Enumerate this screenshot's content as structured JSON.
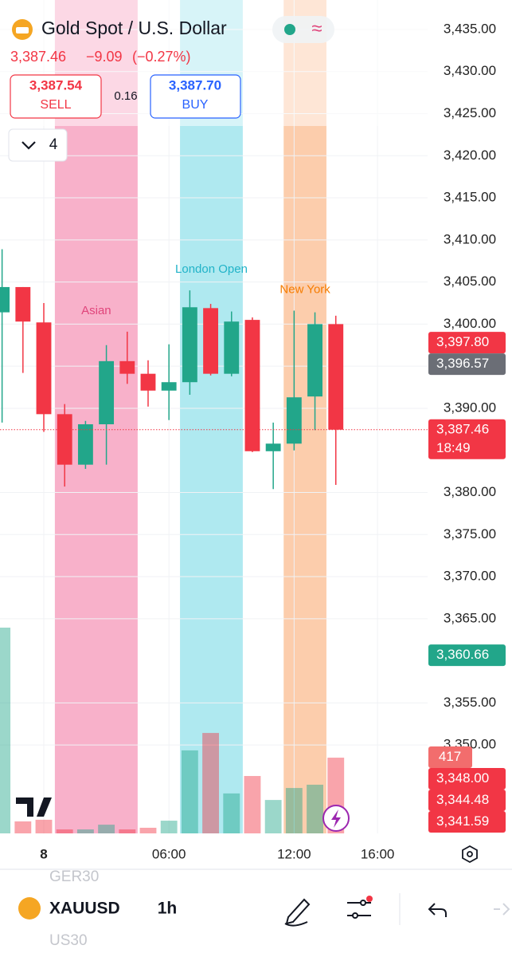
{
  "header": {
    "title": "Gold Spot / U.S. Dollar",
    "last": "3,387.46",
    "change": "−9.09",
    "change_pct": "(−0.27%)",
    "sell_price": "3,387.54",
    "sell_label": "SELL",
    "spread": "0.16",
    "buy_price": "3,387.70",
    "buy_label": "BUY",
    "indicator_count": "4"
  },
  "chart_data": {
    "type": "candlestick",
    "x": [
      -2,
      -1,
      0,
      1,
      2,
      3,
      4,
      5,
      6,
      7,
      8,
      9,
      10,
      11,
      12,
      13,
      14
    ],
    "open": [
      3401.4,
      3404.4,
      3400.2,
      3389.3,
      3383.3,
      3388.1,
      3395.6,
      3394.1,
      3392.1,
      3393.1,
      3401.9,
      3394.1,
      3400.5,
      3384.9,
      3385.8,
      3391.4,
      3400.0
    ],
    "high": [
      3408.9,
      3404.4,
      3402.5,
      3390.5,
      3388.5,
      3397.5,
      3399.1,
      3395.7,
      3397.6,
      3404.0,
      3402.4,
      3401.5,
      3400.8,
      3388.3,
      3401.6,
      3401.4,
      3401.0
    ],
    "low": [
      3388.3,
      3394.2,
      3387.2,
      3380.7,
      3382.8,
      3383.3,
      3392.9,
      3390.2,
      3388.6,
      3391.6,
      3393.9,
      3393.8,
      3384.8,
      3380.4,
      3385.0,
      3387.4,
      3380.9
    ],
    "close": [
      3404.4,
      3400.3,
      3389.3,
      3383.3,
      3388.1,
      3395.6,
      3394.1,
      3392.1,
      3393.1,
      3402.0,
      3394.1,
      3400.3,
      3384.9,
      3385.8,
      3391.3,
      3400.0,
      3387.46
    ],
    "volume": [
      1133,
      66,
      75,
      22,
      22,
      48,
      22,
      31,
      70,
      457,
      553,
      220,
      316,
      184,
      250,
      268,
      417
    ],
    "volume_ylim": [
      0,
      1515
    ],
    "up_color": "#22a68a",
    "down_color": "#f23645",
    "xlim": [
      -2.1,
      18.4
    ],
    "xticks": [
      {
        "value": 0,
        "label": "8"
      },
      {
        "value": 6,
        "label": "06:00"
      },
      {
        "value": 12,
        "label": "12:00"
      },
      {
        "value": 16,
        "label": "16:00"
      }
    ],
    "ylim": [
      3339.5,
      3438.5
    ],
    "yticks": [
      {
        "value": 3435,
        "label": "3,435.00"
      },
      {
        "value": 3430,
        "label": "3,430.00"
      },
      {
        "value": 3425,
        "label": "3,425.00"
      },
      {
        "value": 3420,
        "label": "3,420.00"
      },
      {
        "value": 3415,
        "label": "3,415.00"
      },
      {
        "value": 3410,
        "label": "3,410.00"
      },
      {
        "value": 3405,
        "label": "3,405.00"
      },
      {
        "value": 3400,
        "label": "3,400.00"
      },
      {
        "value": 3395,
        "label": "3,395.00"
      },
      {
        "value": 3390,
        "label": "3,390.00"
      },
      {
        "value": 3380,
        "label": "3,380.00"
      },
      {
        "value": 3375,
        "label": "3,375.00"
      },
      {
        "value": 3370,
        "label": "3,370.00"
      },
      {
        "value": 3365,
        "label": "3,365.00"
      },
      {
        "value": 3355,
        "label": "3,355.00"
      },
      {
        "value": 3350,
        "label": "3,350.00"
      }
    ],
    "grid": true,
    "sessions": [
      {
        "name": "Asian",
        "start": 0.53,
        "end": 4.5,
        "color": "#f7a9c4",
        "label_color": "#e0457b"
      },
      {
        "name": "London Open",
        "start": 6.53,
        "end": 9.54,
        "color": "#a6e7ee",
        "label_color": "#22b3c8"
      },
      {
        "name": "New York",
        "start": 11.5,
        "end": 13.55,
        "color": "#fcc8a3",
        "label_color": "#f57c00"
      }
    ],
    "price_labels": [
      {
        "value": 3397.8,
        "label": "3,397.80",
        "color": "#f23645"
      },
      {
        "value": 3396.57,
        "label": "3,396.57",
        "color": "#6b6e76"
      },
      {
        "value": 3387.46,
        "label": "3,387.46",
        "color": "#f23645",
        "sub": "18:49"
      },
      {
        "value": 3360.66,
        "label": "3,360.66",
        "color": "#22a68a"
      },
      {
        "value": 3348.0,
        "label": "3,348.00",
        "color": "#f23645"
      },
      {
        "value": 3344.48,
        "label": "3,344.48",
        "color": "#f23645"
      },
      {
        "value": 3341.59,
        "label": "3,341.59",
        "color": "#f23645"
      }
    ]
  },
  "toolbar": {
    "above": "GER30",
    "symbol": "XAUUSD",
    "interval": "1h",
    "below": "US30"
  }
}
